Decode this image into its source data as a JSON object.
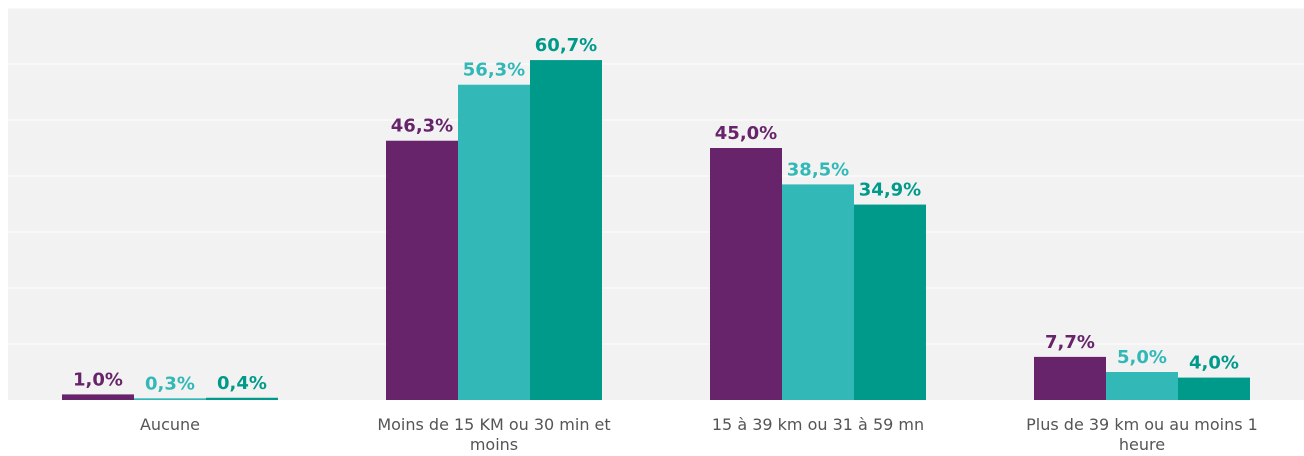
{
  "chart_data": {
    "type": "bar",
    "categories": [
      [
        "Aucune"
      ],
      [
        "Moins de 15 KM ou 30 min et",
        "moins"
      ],
      [
        "15 à 39 km ou 31 à 59 mn"
      ],
      [
        "Plus de 39 km ou au moins 1",
        "heure"
      ]
    ],
    "series": [
      {
        "values": [
          1.0,
          46.3,
          45.0,
          7.7
        ],
        "labels": [
          "1,0%",
          "46,3%",
          "45,0%",
          "7,7%"
        ],
        "color": "#68246b"
      },
      {
        "values": [
          0.3,
          56.3,
          38.5,
          5.0
        ],
        "labels": [
          "0,3%",
          "56,3%",
          "38,5%",
          "5,0%"
        ],
        "color": "#33b8b8"
      },
      {
        "values": [
          0.4,
          60.7,
          34.9,
          4.0
        ],
        "labels": [
          "0,4%",
          "60,7%",
          "34,9%",
          "4,0%"
        ],
        "color": "#009a8a"
      }
    ],
    "ylim": [
      0,
      70
    ],
    "grid_step": 10,
    "grid": true,
    "legend": false,
    "background": "#f2f2f2",
    "gridline_color": "#ffffff",
    "category_label_color": "#555555"
  }
}
